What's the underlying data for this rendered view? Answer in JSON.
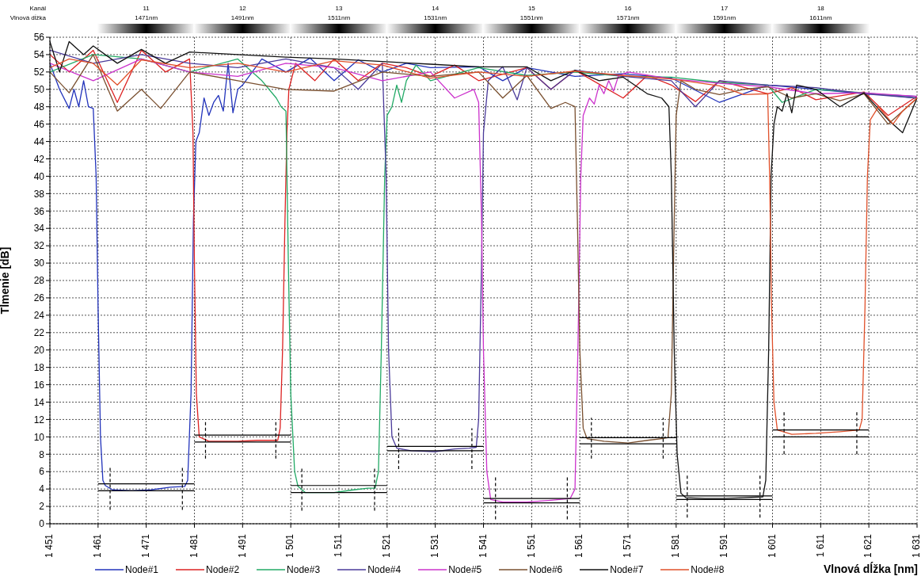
{
  "chart_data": {
    "type": "line",
    "xlabel": "Vlnová dĺžka [nm]",
    "ylabel": "Tlmenie [dB]",
    "xlim": [
      1451,
      1631
    ],
    "ylim": [
      0,
      56
    ],
    "xticks": [
      {
        "value": 1451,
        "label": "1 451"
      },
      {
        "value": 1461,
        "label": "1 461"
      },
      {
        "value": 1471,
        "label": "1 471"
      },
      {
        "value": 1481,
        "label": "1 481"
      },
      {
        "value": 1491,
        "label": "1 491"
      },
      {
        "value": 1501,
        "label": "1 501"
      },
      {
        "value": 1511,
        "label": "1 511"
      },
      {
        "value": 1521,
        "label": "1 521"
      },
      {
        "value": 1531,
        "label": "1 531"
      },
      {
        "value": 1541,
        "label": "1 541"
      },
      {
        "value": 1551,
        "label": "1 551"
      },
      {
        "value": 1561,
        "label": "1 561"
      },
      {
        "value": 1571,
        "label": "1 571"
      },
      {
        "value": 1581,
        "label": "1 581"
      },
      {
        "value": 1591,
        "label": "1 591"
      },
      {
        "value": 1601,
        "label": "1 601"
      },
      {
        "value": 1611,
        "label": "1 611"
      },
      {
        "value": 1621,
        "label": "1 621"
      },
      {
        "value": 1631,
        "label": "1 631"
      }
    ],
    "yticks": [
      0,
      2,
      4,
      6,
      8,
      10,
      12,
      14,
      16,
      18,
      20,
      22,
      24,
      26,
      28,
      30,
      32,
      34,
      36,
      38,
      40,
      42,
      44,
      46,
      48,
      50,
      52,
      54,
      56
    ],
    "grid": true,
    "legend": "bottom",
    "marker": "none",
    "line_style": "solid",
    "annotations": [
      "Kanál",
      "Vlnová dĺžka",
      "11",
      "1471nm",
      "12",
      "1491nm",
      "13",
      "1511nm",
      "14",
      "1531nm",
      "15",
      "1551nm",
      "16",
      "1571nm",
      "17",
      "1591nm",
      "18",
      "1611nm"
    ],
    "series": [
      {
        "name": "Node#1",
        "color": "#2233bb",
        "x": [
          1451,
          1453,
          1455,
          1456,
          1457,
          1458,
          1459,
          1460,
          1460.6,
          1461,
          1461.5,
          1462,
          1462.5,
          1464,
          1468,
          1472,
          1476,
          1479,
          1479.6,
          1480.3,
          1480.8,
          1481.3,
          1482,
          1483,
          1484,
          1485,
          1486,
          1487,
          1488,
          1489,
          1490,
          1491,
          1495,
          1500,
          1505,
          1510,
          1515,
          1520,
          1525,
          1530,
          1540,
          1545,
          1550,
          1560,
          1570,
          1580,
          1590,
          1600,
          1610,
          1620,
          1631
        ],
        "values": [
          53,
          50,
          47.8,
          50,
          48,
          51,
          48,
          47.8,
          40,
          25,
          10,
          5,
          4.4,
          3.9,
          3.8,
          3.9,
          4.2,
          4.3,
          5,
          15,
          35,
          44,
          45,
          49,
          47,
          48.5,
          49.3,
          47.5,
          53,
          47.3,
          50,
          50.5,
          53.5,
          52,
          53.6,
          51,
          53.4,
          52,
          53,
          52.5,
          52.6,
          51,
          52.5,
          51.5,
          51.8,
          51.3,
          48.5,
          50.5,
          50,
          49.5,
          49.2
        ]
      },
      {
        "name": "Node#2",
        "color": "#dd2222",
        "x": [
          1451,
          1455,
          1460,
          1465,
          1470,
          1475,
          1480,
          1480.7,
          1481,
          1481.4,
          1482,
          1484,
          1490,
          1494,
          1497,
          1498.3,
          1498.8,
          1499.3,
          1499.8,
          1500.2,
          1500.6,
          1502,
          1506,
          1510,
          1515,
          1520,
          1525,
          1530,
          1535,
          1540,
          1550,
          1555,
          1560,
          1570,
          1575,
          1580,
          1585,
          1590,
          1600,
          1605,
          1610,
          1620,
          1625,
          1631
        ],
        "values": [
          54,
          52,
          54.5,
          48.5,
          54.5,
          52,
          53.5,
          45,
          30,
          15,
          10,
          9.5,
          9.5,
          9.6,
          9.6,
          9.6,
          11,
          20,
          35,
          45,
          50,
          53,
          51,
          53.5,
          51,
          53,
          52.5,
          51.5,
          52.8,
          51,
          52.5,
          50,
          52.2,
          49,
          51.6,
          50.5,
          48.6,
          51,
          49.5,
          50.2,
          48.8,
          49.7,
          47,
          49.2
        ]
      },
      {
        "name": "Node#3",
        "color": "#22aa66",
        "x": [
          1451,
          1460,
          1470,
          1480,
          1490,
          1495,
          1498,
          1499,
          1500,
          1500.5,
          1501,
          1501.8,
          1502.5,
          1504,
          1510,
          1514,
          1517,
          1518.5,
          1519.2,
          1519.8,
          1520.5,
          1521,
          1522,
          1523,
          1524,
          1525,
          1527,
          1530,
          1540,
          1550,
          1560,
          1570,
          1580,
          1590,
          1600,
          1603,
          1610,
          1620,
          1631
        ],
        "values": [
          52,
          54,
          53.5,
          52,
          53.5,
          51,
          49,
          48,
          47.5,
          30,
          15,
          6,
          4.3,
          3.6,
          3.6,
          3.9,
          4.1,
          4.1,
          6,
          20,
          40,
          47,
          48,
          50.5,
          48.5,
          51,
          52.8,
          51,
          52.5,
          51.6,
          52,
          51.5,
          51.4,
          50.8,
          50.5,
          48.5,
          50,
          49.6,
          49
        ]
      },
      {
        "name": "Node#4",
        "color": "#4a3a9a",
        "x": [
          1451,
          1460,
          1470,
          1480,
          1490,
          1500,
          1510,
          1515,
          1520,
          1520.8,
          1521.3,
          1522,
          1523,
          1526,
          1531,
          1535,
          1538,
          1539.5,
          1540,
          1540.6,
          1541,
          1542,
          1545,
          1548,
          1550,
          1555,
          1560,
          1570,
          1580,
          1585,
          1590,
          1600,
          1610,
          1620,
          1631
        ],
        "values": [
          54.5,
          53,
          54,
          53,
          52.5,
          53.5,
          52.5,
          50,
          53,
          40,
          20,
          10,
          8.7,
          8.4,
          8.3,
          8.6,
          8.7,
          8.8,
          12,
          30,
          45,
          51,
          52.6,
          48.8,
          52.5,
          50,
          52.2,
          51.5,
          51,
          48,
          51,
          50.5,
          50.2,
          49.5,
          49
        ]
      },
      {
        "name": "Node#5",
        "color": "#cc33cc",
        "x": [
          1451,
          1460,
          1470,
          1480,
          1490,
          1500,
          1510,
          1520,
          1530,
          1535,
          1539,
          1540,
          1540.6,
          1541,
          1541.7,
          1542.5,
          1545,
          1550,
          1555,
          1559,
          1560,
          1560.6,
          1561.2,
          1561.7,
          1563,
          1564,
          1565,
          1566,
          1567,
          1568,
          1569,
          1571,
          1580,
          1590,
          1600,
          1610,
          1620,
          1631
        ],
        "values": [
          53,
          51,
          53.5,
          52,
          51.5,
          53,
          52.5,
          51,
          52,
          49,
          50,
          48.5,
          35,
          20,
          6,
          2.8,
          2.5,
          2.5,
          2.7,
          2.9,
          4,
          20,
          40,
          47,
          49,
          48.3,
          50.5,
          49.5,
          51,
          49.8,
          51.5,
          52,
          51.2,
          50.7,
          50.3,
          49.5,
          49.6,
          49.2
        ]
      },
      {
        "name": "Node#6",
        "color": "#7a5030",
        "x": [
          1451,
          1455,
          1460,
          1465,
          1470,
          1474,
          1480,
          1490,
          1500,
          1510,
          1520,
          1530,
          1540,
          1545,
          1550,
          1555,
          1558,
          1560,
          1560.5,
          1561,
          1561.7,
          1562.5,
          1566,
          1571,
          1575,
          1578,
          1579.3,
          1580,
          1580.6,
          1581,
          1582,
          1585,
          1590,
          1595,
          1600,
          1605,
          1610,
          1615,
          1620,
          1625,
          1631
        ],
        "values": [
          52,
          49.6,
          54,
          47.5,
          50,
          47.8,
          52,
          51,
          50,
          49.8,
          52,
          51.5,
          52,
          49,
          51.6,
          47.8,
          48.5,
          48,
          35,
          20,
          11,
          9.8,
          9.5,
          9.3,
          9.6,
          9.8,
          9.9,
          15,
          35,
          47,
          51,
          50,
          49.4,
          50,
          50.3,
          49,
          49.5,
          48.7,
          49.5,
          46,
          49
        ]
      },
      {
        "name": "Node#7",
        "color": "#111111",
        "x": [
          1451,
          1453,
          1455,
          1458,
          1460,
          1465,
          1470,
          1475,
          1480,
          1490,
          1500,
          1510,
          1520,
          1530,
          1540,
          1550,
          1555,
          1560,
          1565,
          1570,
          1575,
          1578,
          1579.5,
          1580,
          1580.6,
          1581.2,
          1582,
          1583,
          1587,
          1591,
          1595,
          1599,
          1599.6,
          1600.2,
          1600.7,
          1601.3,
          1602,
          1603,
          1604,
          1605,
          1606,
          1610,
          1615,
          1620,
          1625,
          1628,
          1631
        ],
        "values": [
          55.5,
          52,
          55.5,
          54,
          55,
          53,
          54.6,
          53,
          54.3,
          54,
          53.7,
          53.5,
          53.2,
          52.9,
          52.6,
          52.6,
          51,
          52.2,
          51,
          51.4,
          49.5,
          49,
          48,
          40,
          20,
          8,
          3.5,
          3,
          2.9,
          2.9,
          3,
          3.1,
          5,
          20,
          40,
          46,
          48,
          47.5,
          49.5,
          47.3,
          50.5,
          50,
          48,
          49.6,
          46.5,
          45,
          49
        ]
      },
      {
        "name": "Node#8",
        "color": "#e0502a",
        "x": [
          1451,
          1455,
          1460,
          1465,
          1470,
          1480,
          1490,
          1500,
          1510,
          1520,
          1530,
          1540,
          1550,
          1560,
          1570,
          1580,
          1590,
          1595,
          1600,
          1600.4,
          1600.8,
          1601.3,
          1602,
          1605,
          1610,
          1615,
          1619,
          1619.6,
          1620.2,
          1620.7,
          1621.3,
          1623,
          1626,
          1628,
          1631
        ],
        "values": [
          52.5,
          53.5,
          53,
          50.5,
          53.4,
          52.5,
          53,
          52,
          53.3,
          52.8,
          51.3,
          52,
          51.5,
          52.1,
          51.6,
          51.2,
          50.4,
          49.4,
          49.5,
          40,
          25,
          14,
          10.8,
          10.3,
          10.4,
          10.6,
          10.8,
          12,
          25,
          40,
          46.5,
          48,
          46,
          47.5,
          49
        ]
      },
      {
        "color": "#000000",
        "line_style": "solid",
        "x": [
          1461,
          1481
        ],
        "values": [
          4.6,
          4.6
        ]
      },
      {
        "color": "#000000",
        "line_style": "solid",
        "x": [
          1461,
          1481
        ],
        "values": [
          3.8,
          3.8
        ]
      },
      {
        "color": "#000000",
        "line_style": "solid",
        "x": [
          1481,
          1501
        ],
        "values": [
          10.2,
          10.2
        ]
      },
      {
        "color": "#000000",
        "line_style": "solid",
        "x": [
          1481,
          1501
        ],
        "values": [
          9.4,
          9.4
        ]
      },
      {
        "color": "#000000",
        "line_style": "solid",
        "x": [
          1501,
          1521
        ],
        "values": [
          4.4,
          4.4
        ]
      },
      {
        "color": "#000000",
        "line_style": "solid",
        "x": [
          1501,
          1521
        ],
        "values": [
          3.6,
          3.6
        ]
      },
      {
        "color": "#000000",
        "line_style": "solid",
        "x": [
          1521,
          1541
        ],
        "values": [
          8.9,
          8.9
        ]
      },
      {
        "color": "#000000",
        "line_style": "solid",
        "x": [
          1521,
          1541
        ],
        "values": [
          8.4,
          8.4
        ]
      },
      {
        "color": "#000000",
        "line_style": "solid",
        "x": [
          1541,
          1561
        ],
        "values": [
          2.9,
          2.9
        ]
      },
      {
        "color": "#000000",
        "line_style": "solid",
        "x": [
          1541,
          1561
        ],
        "values": [
          2.4,
          2.4
        ]
      },
      {
        "color": "#000000",
        "line_style": "solid",
        "x": [
          1561,
          1581
        ],
        "values": [
          9.9,
          9.9
        ]
      },
      {
        "color": "#000000",
        "line_style": "solid",
        "x": [
          1561,
          1581
        ],
        "values": [
          9.2,
          9.2
        ]
      },
      {
        "color": "#000000",
        "line_style": "solid",
        "x": [
          1581,
          1601
        ],
        "values": [
          3.2,
          3.2
        ]
      },
      {
        "color": "#000000",
        "line_style": "solid",
        "x": [
          1581,
          1601
        ],
        "values": [
          2.8,
          2.8
        ]
      },
      {
        "color": "#000000",
        "line_style": "solid",
        "x": [
          1601,
          1621
        ],
        "values": [
          10.8,
          10.8
        ]
      },
      {
        "color": "#000000",
        "line_style": "solid",
        "x": [
          1601,
          1621
        ],
        "values": [
          10,
          10
        ]
      },
      {
        "color": "#000000",
        "line_style": "dashed",
        "x": [
          1463.5,
          1463.5
        ],
        "values": [
          1.6,
          6.7
        ]
      },
      {
        "color": "#000000",
        "line_style": "dashed",
        "x": [
          1478.5,
          1478.5
        ],
        "values": [
          1.6,
          6.7
        ]
      },
      {
        "color": "#000000",
        "line_style": "dashed",
        "x": [
          1483.3,
          1483.3
        ],
        "values": [
          7.5,
          12
        ]
      },
      {
        "color": "#000000",
        "line_style": "dashed",
        "x": [
          1497.9,
          1497.9
        ],
        "values": [
          7.5,
          12
        ]
      },
      {
        "color": "#000000",
        "line_style": "dashed",
        "x": [
          1503.3,
          1503.3
        ],
        "values": [
          1.5,
          6.5
        ]
      },
      {
        "color": "#000000",
        "line_style": "dashed",
        "x": [
          1518.4,
          1518.4
        ],
        "values": [
          1.5,
          6.5
        ]
      },
      {
        "color": "#000000",
        "line_style": "dashed",
        "x": [
          1523.4,
          1523.4
        ],
        "values": [
          6.3,
          11
        ]
      },
      {
        "color": "#000000",
        "line_style": "dashed",
        "x": [
          1538.6,
          1538.6
        ],
        "values": [
          6.3,
          11
        ]
      },
      {
        "color": "#000000",
        "line_style": "dashed",
        "x": [
          1543.5,
          1543.5
        ],
        "values": [
          0.5,
          5.4
        ]
      },
      {
        "color": "#000000",
        "line_style": "dashed",
        "x": [
          1558.4,
          1558.4
        ],
        "values": [
          0.5,
          5.4
        ]
      },
      {
        "color": "#000000",
        "line_style": "dashed",
        "x": [
          1563.4,
          1563.4
        ],
        "values": [
          7.5,
          12.2
        ]
      },
      {
        "color": "#000000",
        "line_style": "dashed",
        "x": [
          1578.3,
          1578.3
        ],
        "values": [
          7.5,
          12.2
        ]
      },
      {
        "color": "#000000",
        "line_style": "dashed",
        "x": [
          1583.3,
          1583.3
        ],
        "values": [
          0.7,
          5.6
        ]
      },
      {
        "color": "#000000",
        "line_style": "dashed",
        "x": [
          1598.4,
          1598.4
        ],
        "values": [
          0.7,
          5.6
        ]
      },
      {
        "color": "#000000",
        "line_style": "dashed",
        "x": [
          1603.4,
          1603.4
        ],
        "values": [
          8,
          13
        ]
      },
      {
        "color": "#000000",
        "line_style": "dashed",
        "x": [
          1618.5,
          1618.5
        ],
        "values": [
          8,
          13
        ]
      }
    ]
  }
}
